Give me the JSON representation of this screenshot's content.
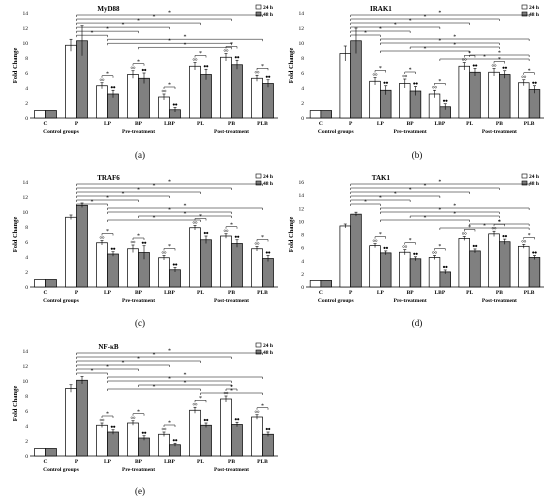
{
  "legend": {
    "label_24": "24 h",
    "label_48": "48 h"
  },
  "chart_data": [
    {
      "type": "bar",
      "panel_label": "(a)",
      "title": "MyD88",
      "ylabel": "Fold Change",
      "xlabel": "",
      "ylim": [
        0,
        14
      ],
      "yticks": [
        0,
        2,
        4,
        6,
        8,
        10,
        12,
        14
      ],
      "categories": [
        "C",
        "P",
        "LP",
        "BP",
        "LBP",
        "PL",
        "PB",
        "PLB"
      ],
      "group_labels": [
        "Control groups",
        "Pre-treatment",
        "Post-treatment"
      ],
      "series": [
        {
          "name": "24 h",
          "values": [
            1.0,
            9.7,
            4.3,
            5.8,
            2.8,
            6.9,
            8.1,
            5.3
          ],
          "errors": [
            0,
            0.8,
            0.4,
            0.5,
            0.4,
            0.5,
            0.5,
            0.4
          ]
        },
        {
          "name": "48 h",
          "values": [
            1.0,
            10.3,
            3.2,
            5.3,
            1.1,
            5.8,
            7.1,
            4.6
          ],
          "errors": [
            0,
            2.0,
            0.5,
            0.7,
            0.3,
            0.7,
            0.6,
            0.5
          ]
        }
      ],
      "star_rows": 9
    },
    {
      "type": "bar",
      "panel_label": "(b)",
      "title": "IRAK1",
      "ylabel": "Fold Change",
      "xlabel": "",
      "ylim": [
        0,
        14
      ],
      "yticks": [
        0,
        2,
        4,
        6,
        8,
        10,
        12,
        14
      ],
      "categories": [
        "C",
        "P",
        "LP",
        "BP",
        "LBP",
        "PL",
        "PB",
        "PLB"
      ],
      "group_labels": [
        "Control groups",
        "Pre-treatment",
        "Post-treatment"
      ],
      "series": [
        {
          "name": "24 h",
          "values": [
            1.0,
            8.6,
            4.9,
            4.6,
            3.2,
            6.9,
            6.1,
            4.7
          ],
          "errors": [
            0,
            1.0,
            0.5,
            0.6,
            0.5,
            0.5,
            0.5,
            0.4
          ]
        },
        {
          "name": "48 h",
          "values": [
            1.0,
            10.3,
            3.7,
            3.6,
            1.5,
            6.1,
            5.8,
            3.8
          ],
          "errors": [
            0,
            1.7,
            0.6,
            0.6,
            0.4,
            0.5,
            0.5,
            0.5
          ]
        }
      ],
      "star_rows": 12
    },
    {
      "type": "bar",
      "panel_label": "(c)",
      "title": "TRAF6",
      "ylabel": "Fold Change",
      "xlabel": "",
      "ylim": [
        0,
        14
      ],
      "yticks": [
        0,
        2,
        4,
        6,
        8,
        10,
        12,
        14
      ],
      "categories": [
        "C",
        "P",
        "LP",
        "BP",
        "LBP",
        "PL",
        "PB",
        "PLB"
      ],
      "group_labels": [
        "Control groups",
        "Pre-treatment",
        "Post-treatment"
      ],
      "series": [
        {
          "name": "24 h",
          "values": [
            1.0,
            9.3,
            5.9,
            5.1,
            3.9,
            7.9,
            6.8,
            5.1
          ],
          "errors": [
            0,
            0.3,
            0.3,
            0.5,
            0.3,
            0.3,
            0.3,
            0.3
          ]
        },
        {
          "name": "48 h",
          "values": [
            1.0,
            10.9,
            4.4,
            4.6,
            2.3,
            6.3,
            5.8,
            3.8
          ],
          "errors": [
            0,
            0.3,
            0.3,
            0.9,
            0.3,
            0.5,
            0.5,
            0.4
          ]
        }
      ],
      "star_rows": 10
    },
    {
      "type": "bar",
      "panel_label": "(d)",
      "title": "TAK1",
      "ylabel": "Fold Change",
      "xlabel": "",
      "ylim": [
        0,
        16
      ],
      "yticks": [
        0,
        2,
        4,
        6,
        8,
        10,
        12,
        14,
        16
      ],
      "categories": [
        "C",
        "P",
        "LP",
        "BP",
        "LBP",
        "PL",
        "PB",
        "PLB"
      ],
      "group_labels": [
        "Control groups",
        "Pre-treatment",
        "Post-treatment"
      ],
      "series": [
        {
          "name": "24 h",
          "values": [
            1.0,
            9.3,
            6.3,
            5.3,
            4.5,
            7.4,
            8.1,
            6.2
          ],
          "errors": [
            0,
            0.3,
            0.3,
            0.4,
            0.3,
            0.3,
            0.4,
            0.3
          ]
        },
        {
          "name": "48 h",
          "values": [
            1.0,
            11.1,
            5.2,
            4.3,
            2.3,
            5.5,
            6.9,
            4.5
          ],
          "errors": [
            0,
            0.3,
            0.3,
            0.3,
            0.3,
            0.3,
            0.4,
            0.3
          ]
        }
      ],
      "star_rows": 12
    },
    {
      "type": "bar",
      "panel_label": "(e)",
      "title": "NF-κB",
      "ylabel": "Fold Change",
      "xlabel": "",
      "ylim": [
        0,
        14
      ],
      "yticks": [
        0,
        2,
        4,
        6,
        8,
        10,
        12,
        14
      ],
      "categories": [
        "C",
        "P",
        "LP",
        "BP",
        "LBP",
        "PL",
        "PB",
        "PLB"
      ],
      "group_labels": [
        "Control groups",
        "Pre-treatment",
        "Post-treatment"
      ],
      "series": [
        {
          "name": "24 h",
          "values": [
            1.0,
            9.0,
            4.1,
            4.4,
            2.9,
            6.1,
            7.6,
            5.2
          ],
          "errors": [
            0,
            0.5,
            0.3,
            0.3,
            0.3,
            0.4,
            0.4,
            0.3
          ]
        },
        {
          "name": "48 h",
          "values": [
            1.0,
            10.1,
            3.2,
            2.4,
            1.5,
            4.1,
            4.2,
            2.9
          ],
          "errors": [
            0,
            0.5,
            0.3,
            0.3,
            0.2,
            0.3,
            0.3,
            0.3
          ]
        }
      ],
      "star_rows": 11
    }
  ]
}
